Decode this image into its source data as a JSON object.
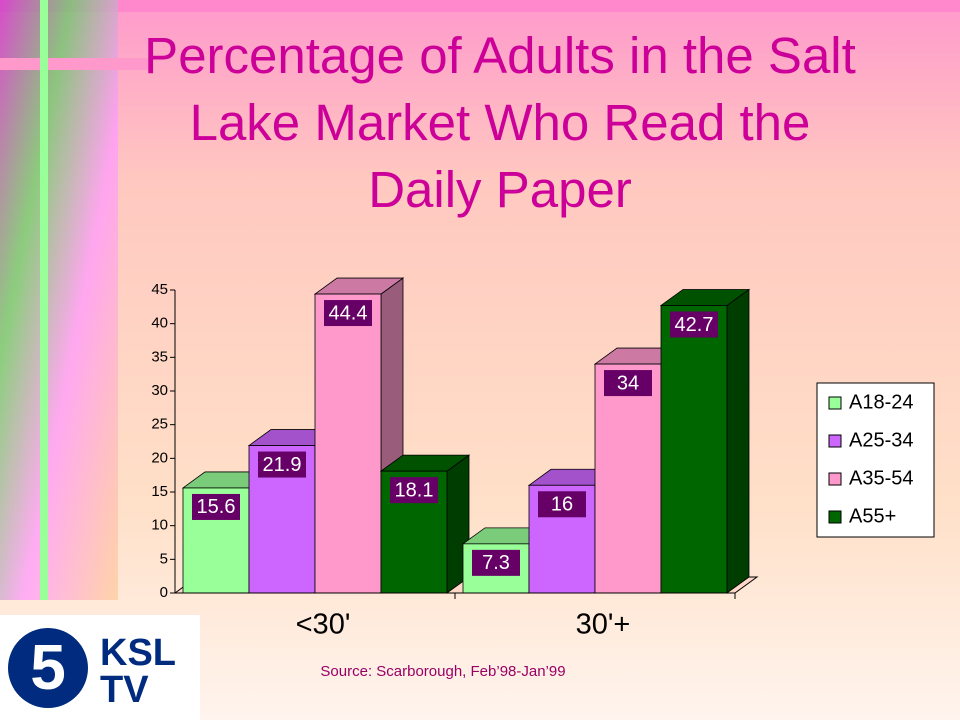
{
  "chart_data": {
    "type": "bar3d",
    "title": "Percentage of Adults in the Salt Lake Market Who Read the Daily Paper",
    "categories": [
      "<30'",
      "30'+"
    ],
    "series": [
      {
        "name": "A18-24",
        "color": "#99ff99",
        "values": [
          15.6,
          7.3
        ]
      },
      {
        "name": "A25-34",
        "color": "#cc66ff",
        "values": [
          21.9,
          16
        ]
      },
      {
        "name": "A35-54",
        "color": "#ff99cc",
        "values": [
          44.4,
          34
        ]
      },
      {
        "name": "A55+",
        "color": "#006600",
        "values": [
          18.1,
          42.7
        ]
      }
    ],
    "ylim": [
      0,
      45
    ],
    "yticks": [
      0,
      5,
      10,
      15,
      20,
      25,
      30,
      35,
      40,
      45
    ],
    "legend": "right",
    "source": "Source: Scarborough, Feb’98-Jan’99"
  },
  "logo": {
    "number": "5",
    "line1": "KSL",
    "line2": "TV"
  }
}
